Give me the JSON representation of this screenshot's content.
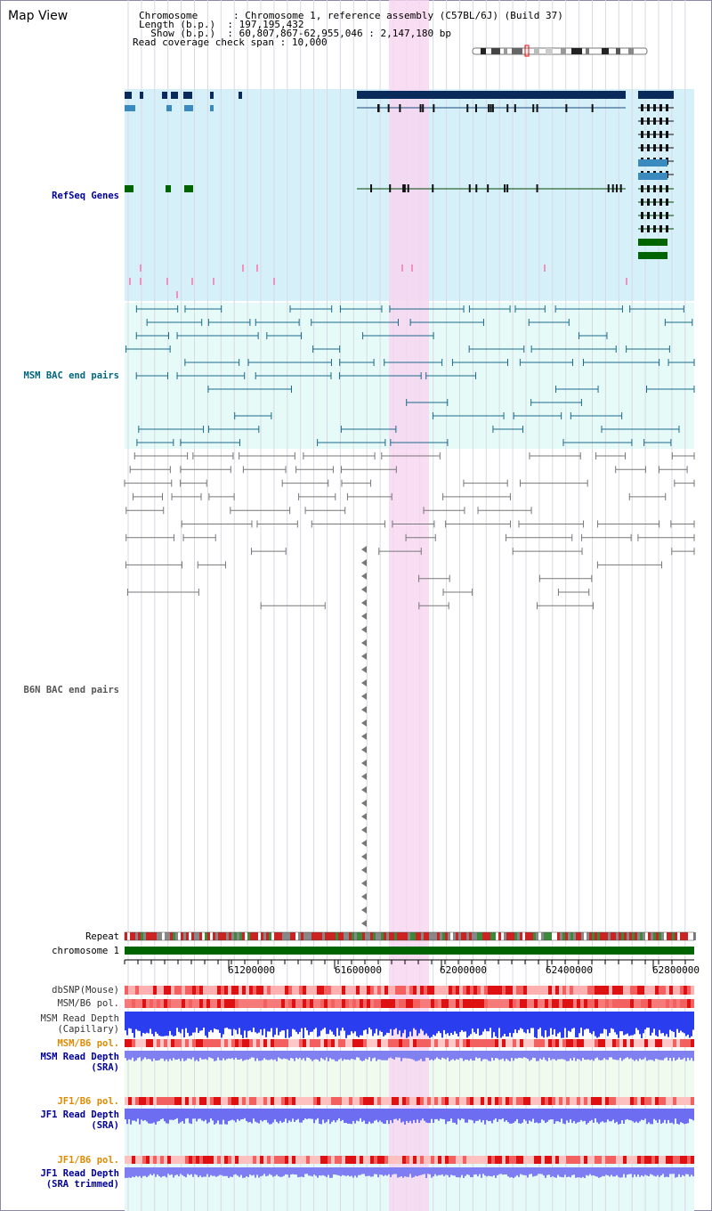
{
  "page": {
    "title": "Map View"
  },
  "header": {
    "lines": [
      {
        "label": "Chromosome      ",
        "value": "Chromosome 1, reference assembly (C57BL/6J) (Build 37)"
      },
      {
        "label": "Length (b.p.)  ",
        "value": "197,195,432"
      },
      {
        "label": "  Show (b.p.)  ",
        "value": "60,807,867-62,955,046 : 2,147,180 bp"
      },
      {
        "label": "Read coverage check span",
        "value": "10,000"
      }
    ]
  },
  "tracks": {
    "refseq": "RefSeq Genes",
    "msm_bac": "MSM BAC end pairs",
    "b6n_bac": "B6N BAC end pairs",
    "repeat": "Repeat",
    "chromosome": "chromosome 1",
    "dbsnp": "dbSNP(Mouse)",
    "msm_b6_pol": "MSM/B6 pol.",
    "msm_depth_cap_1": "MSM Read Depth",
    "msm_depth_cap_2": "(Capillary)",
    "msm_b6_pol_sra": "MSM/B6 pol.",
    "msm_depth_sra_1": "MSM Read Depth",
    "msm_depth_sra_2": "(SRA)",
    "jf1_b6_pol": "JF1/B6 pol.",
    "jf1_depth_1": "JF1 Read Depth",
    "jf1_depth_2": "(SRA)",
    "jf1_b6_pol_trim": "JF1/B6 pol.",
    "jf1_trim_1": "JF1 Read Depth",
    "jf1_trim_2": "(SRA trimmed)"
  },
  "axis": {
    "ticks": [
      "61200000",
      "61600000",
      "62000000",
      "62400000",
      "62800000"
    ]
  },
  "colors": {
    "refseq_label": "#000099",
    "msm_label": "#006680",
    "b6n_label": "#555555",
    "orange_label": "#e08a00",
    "blue_label": "#000099",
    "highlight": "#f8d4f0",
    "chromosome_bar": "#006400"
  }
}
